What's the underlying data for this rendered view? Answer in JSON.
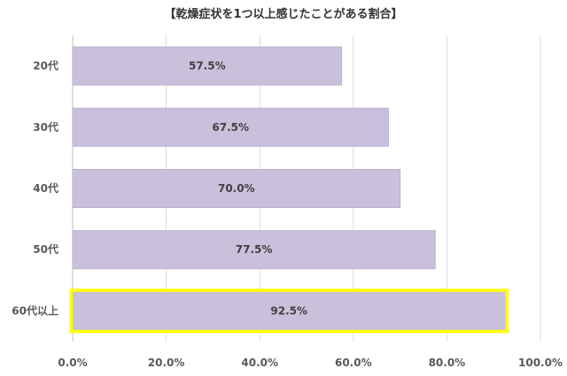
{
  "chart_data": {
    "type": "bar",
    "orientation": "horizontal",
    "title": "【乾燥症状を1つ以上感じたことがある割合】",
    "categories": [
      "20代",
      "30代",
      "40代",
      "50代",
      "60代以上"
    ],
    "values": [
      57.5,
      67.5,
      70.0,
      77.5,
      92.5
    ],
    "data_labels": [
      "57.5%",
      "67.5%",
      "70.0%",
      "77.5%",
      "92.5%"
    ],
    "xlim": [
      0,
      100
    ],
    "xticks": [
      0,
      20,
      40,
      60,
      80,
      100
    ],
    "xtick_labels": [
      "0.0%",
      "20.0%",
      "40.0%",
      "60.0%",
      "80.0%",
      "100.0%"
    ],
    "grid": "vertical",
    "highlighted_category": "60代以上",
    "colors": {
      "bar_fill": "#cbc0dc",
      "bar_stroke": "#b9aed0",
      "highlight_stroke": "#ffff00",
      "grid": "#d9d9d9",
      "axis": "#bfbfbf"
    }
  }
}
